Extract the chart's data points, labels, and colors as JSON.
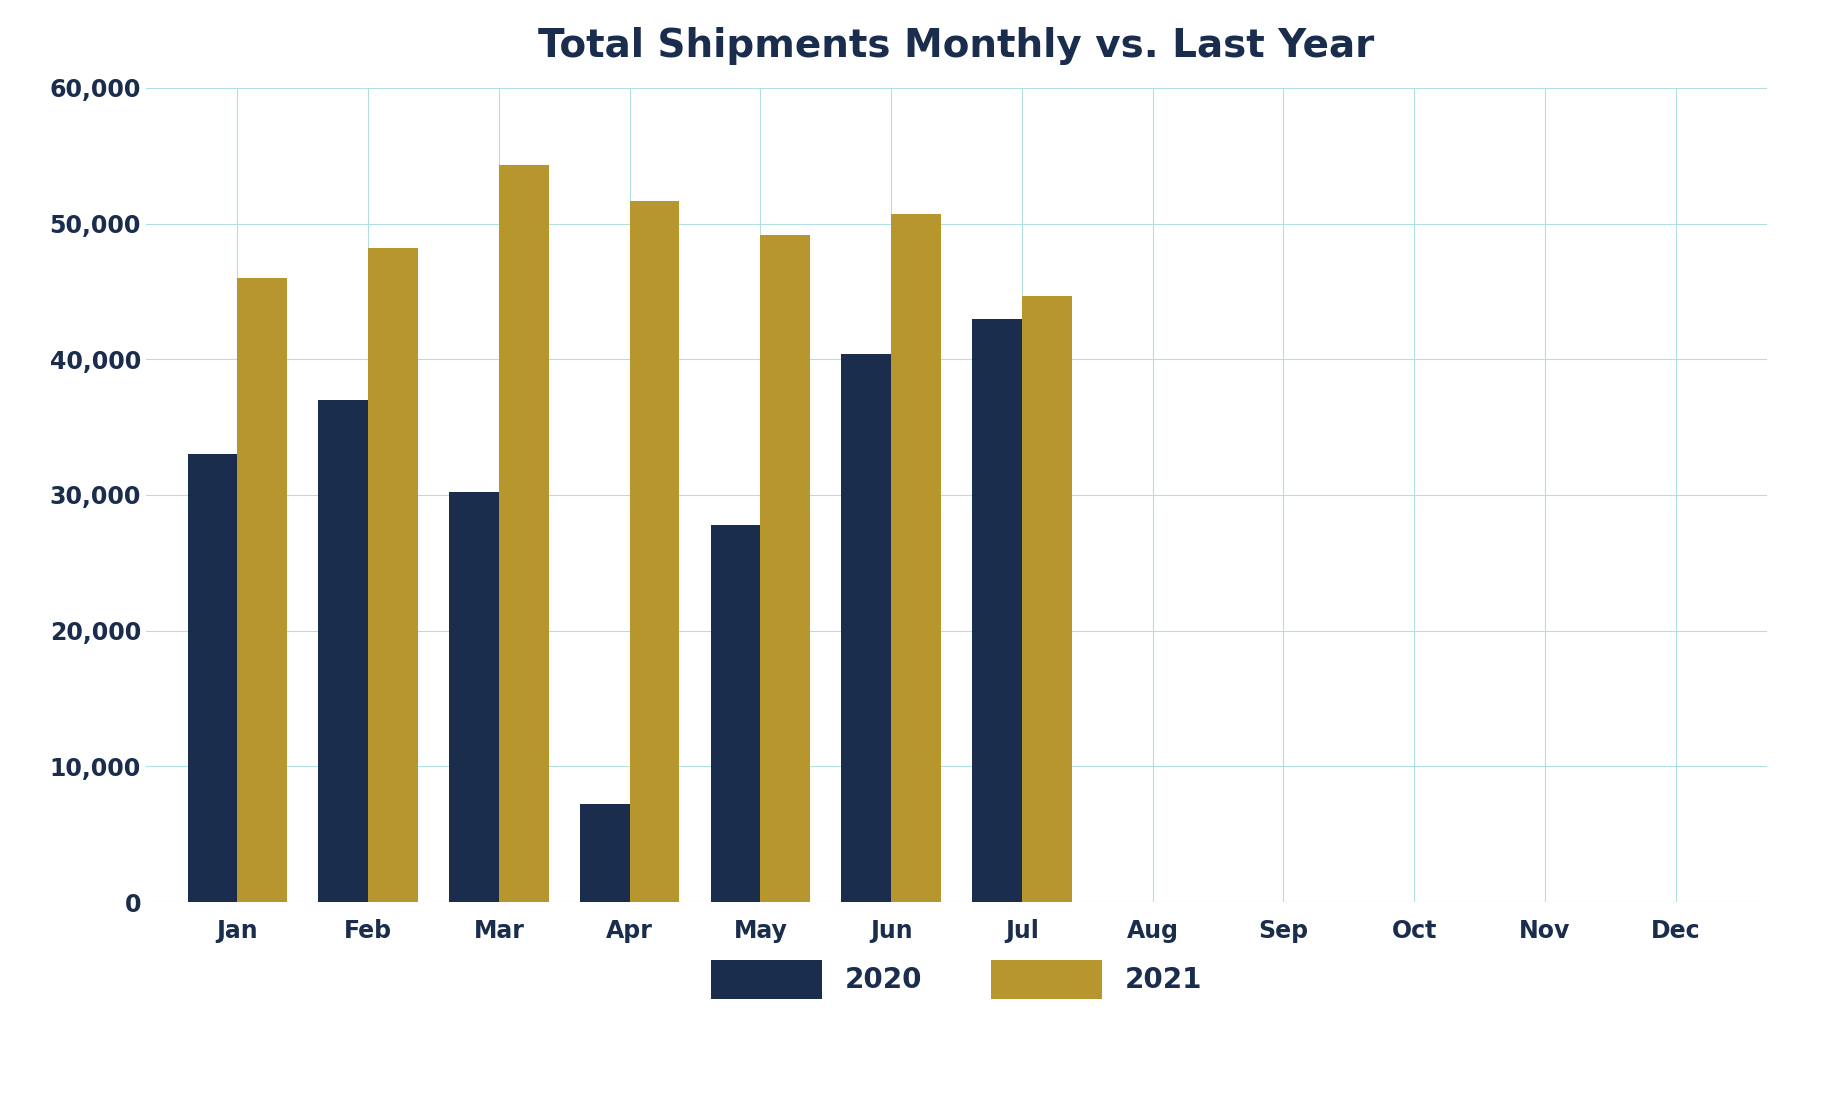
{
  "title": "Total Shipments Monthly vs. Last Year",
  "months": [
    "Jan",
    "Feb",
    "Mar",
    "Apr",
    "May",
    "Jun",
    "Jul",
    "Aug",
    "Sep",
    "Oct",
    "Nov",
    "Dec"
  ],
  "values_2020": [
    33000,
    37000,
    30200,
    7200,
    27800,
    40400,
    43000,
    0,
    0,
    0,
    0,
    0
  ],
  "values_2021": [
    46000,
    48200,
    54300,
    51700,
    49200,
    50700,
    44700,
    0,
    0,
    0,
    0,
    0
  ],
  "color_2020": "#1a2d4d",
  "color_2021": "#b8962e",
  "background_color": "#ffffff",
  "grid_color": "#b0e0e0",
  "title_color": "#1a2d4d",
  "tick_color": "#1a2d4d",
  "ylim": [
    0,
    60000
  ],
  "ytick_step": 10000,
  "bar_width": 0.38,
  "title_fontsize": 28,
  "tick_fontsize": 17,
  "legend_fontsize": 20
}
